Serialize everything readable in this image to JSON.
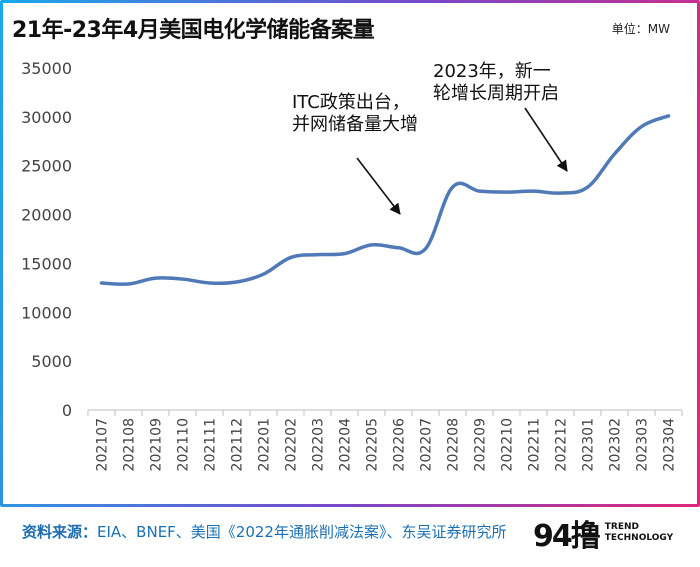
{
  "title": "21年-23年4月美国电化学储能备案量",
  "unit_label": "单位：MW",
  "annotations": [
    {
      "lines": [
        "ITC政策出台，",
        "并网储备量大增"
      ]
    },
    {
      "lines": [
        "2023年，新一",
        "轮增长周期开启"
      ]
    }
  ],
  "footer": {
    "label": "资料来源：",
    "text": "EIA、BNEF、美国《2022年通胀削减法案》、东吴证券研究所"
  },
  "logo": {
    "mark": "94撸",
    "line1": "TREND",
    "line2": "TECHNOLOGY"
  },
  "colors": {
    "line": "#4f79b7",
    "axis": "#bfbfbf",
    "tick_text": "#444444"
  },
  "chart_data": {
    "type": "line",
    "title": "21年-23年4月美国电化学储能备案量",
    "xlabel": "",
    "ylabel": "MW",
    "ylim": [
      0,
      35000
    ],
    "yticks": [
      0,
      5000,
      10000,
      15000,
      20000,
      25000,
      30000,
      35000
    ],
    "categories": [
      "202107",
      "202108",
      "202109",
      "202110",
      "202111",
      "202112",
      "202201",
      "202202",
      "202203",
      "202204",
      "202205",
      "202206",
      "202207",
      "202208",
      "202209",
      "202210",
      "202211",
      "202212",
      "202301",
      "202302",
      "202303",
      "202304"
    ],
    "series": [
      {
        "name": "美国电化学储能备案量",
        "values": [
          13000,
          12900,
          13500,
          13400,
          13000,
          13100,
          13900,
          15600,
          15900,
          16000,
          16900,
          16600,
          16500,
          22800,
          22400,
          22300,
          22400,
          22200,
          22800,
          26200,
          29000,
          30100
        ]
      }
    ]
  }
}
